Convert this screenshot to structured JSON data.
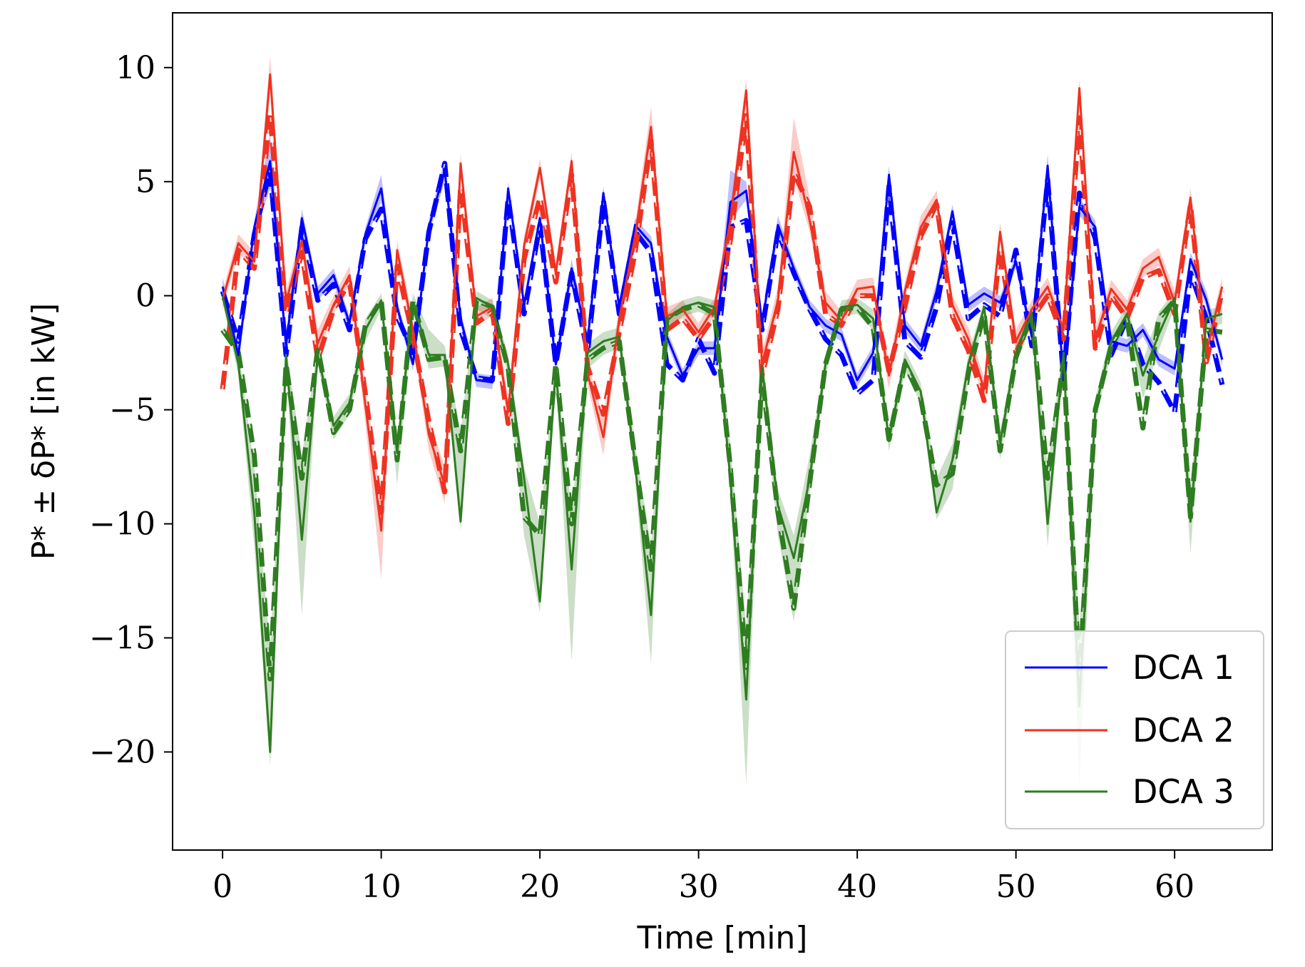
{
  "chart_data": {
    "type": "line",
    "title": "",
    "xlabel": "Time [min]",
    "ylabel": "P* ± δP* [in kW]",
    "xlim": [
      -3.15,
      66.15
    ],
    "ylim": [
      -24.3,
      12.4
    ],
    "xticks": [
      0,
      10,
      20,
      30,
      40,
      50,
      60
    ],
    "yticks": [
      10,
      5,
      0,
      -5,
      -10,
      -15,
      -20
    ],
    "xtick_labels": [
      "0",
      "10",
      "20",
      "30",
      "40",
      "50",
      "60"
    ],
    "ytick_labels": [
      "10",
      "5",
      "0",
      "−5",
      "−10",
      "−15",
      "−20"
    ],
    "legend_position": "lower-right",
    "grid": false,
    "x": [
      0,
      1,
      2,
      3,
      4,
      5,
      6,
      7,
      8,
      9,
      10,
      11,
      12,
      13,
      14,
      15,
      16,
      17,
      18,
      19,
      20,
      21,
      22,
      23,
      24,
      25,
      26,
      27,
      28,
      29,
      30,
      31,
      32,
      33,
      34,
      35,
      36,
      37,
      38,
      39,
      40,
      41,
      42,
      43,
      44,
      45,
      46,
      47,
      48,
      49,
      50,
      51,
      52,
      53,
      54,
      55,
      56,
      57,
      58,
      59,
      60,
      61,
      62,
      63
    ],
    "series": [
      {
        "name": "DCA 1",
        "color": "#0000ff",
        "actual": [
          0.4,
          -2.6,
          3.0,
          5.9,
          -2.2,
          3.4,
          0.1,
          0.9,
          -1.2,
          2.7,
          4.7,
          -0.5,
          -3.0,
          3.0,
          5.5,
          -1.0,
          -3.7,
          -3.8,
          4.7,
          -0.4,
          3.4,
          -3.0,
          1.2,
          -2.0,
          4.5,
          -0.5,
          3.1,
          2.3,
          -1.8,
          -3.5,
          -2.3,
          -2.3,
          4.1,
          4.6,
          -1.2,
          3.1,
          1.2,
          -0.5,
          -1.3,
          -1.7,
          -3.7,
          -2.5,
          5.3,
          -1.3,
          -2.2,
          0.2,
          3.7,
          -0.4,
          0.1,
          -0.3,
          1.5,
          -1.8,
          5.7,
          -3.7,
          3.9,
          3.0,
          -2.0,
          -2.2,
          -1.5,
          -2.8,
          -3.2,
          1.6,
          -0.2,
          -2.8
        ],
        "forecast": [
          0.2,
          -2.0,
          2.7,
          5.5,
          -2.6,
          3.0,
          -0.2,
          0.5,
          -1.5,
          2.5,
          3.8,
          -0.9,
          -2.5,
          2.8,
          5.8,
          -1.5,
          -3.6,
          -3.7,
          4.3,
          -0.8,
          3.1,
          -3.0,
          1.0,
          -2.5,
          4.2,
          -0.8,
          2.8,
          1.9,
          -3.0,
          -3.7,
          -1.9,
          -3.4,
          3.0,
          3.3,
          -1.5,
          2.8,
          1.0,
          -0.6,
          -1.9,
          -2.6,
          -4.3,
          -3.7,
          4.8,
          -2.0,
          -2.7,
          -0.5,
          3.2,
          -1.0,
          -0.4,
          -0.9,
          2.0,
          -2.2,
          5.1,
          -3.6,
          4.5,
          2.5,
          -2.6,
          -1.0,
          -3.0,
          -3.8,
          -5.1,
          1.0,
          -1.0,
          -3.9
        ],
        "upper": [
          0.8,
          -2.2,
          3.3,
          7.1,
          -1.6,
          3.8,
          0.4,
          1.2,
          -0.9,
          3.0,
          5.3,
          -0.2,
          -2.7,
          3.3,
          6.0,
          -0.7,
          -3.4,
          -3.5,
          5.0,
          -0.1,
          3.7,
          -2.6,
          1.6,
          -1.7,
          4.8,
          -0.2,
          3.4,
          2.6,
          -1.5,
          -3.2,
          -2.0,
          -2.0,
          5.5,
          5.0,
          -0.9,
          3.5,
          1.5,
          -0.2,
          -1.0,
          -1.4,
          -3.4,
          -2.2,
          5.7,
          -1.0,
          -1.9,
          0.6,
          4.0,
          -0.1,
          0.4,
          0.0,
          1.8,
          -1.5,
          6.2,
          -3.4,
          4.3,
          3.3,
          -1.7,
          -1.9,
          -1.2,
          -2.5,
          -2.9,
          1.9,
          0.2,
          -2.5
        ],
        "lower": [
          0.0,
          -3.0,
          2.6,
          4.7,
          -2.6,
          3.0,
          -0.2,
          0.6,
          -1.5,
          2.4,
          4.1,
          -0.8,
          -3.3,
          2.7,
          5.0,
          -1.3,
          -4.0,
          -4.1,
          4.4,
          -0.7,
          3.1,
          -3.4,
          0.8,
          -2.3,
          4.2,
          -0.8,
          2.8,
          2.0,
          -2.1,
          -3.8,
          -2.6,
          -2.6,
          3.3,
          4.2,
          -1.5,
          2.7,
          0.9,
          -0.8,
          -1.6,
          -2.0,
          -4.0,
          -2.8,
          4.9,
          -1.6,
          -2.5,
          -0.2,
          3.4,
          -0.7,
          -0.2,
          -0.6,
          1.2,
          -2.1,
          5.2,
          -4.0,
          3.5,
          2.7,
          -2.3,
          -2.5,
          -1.8,
          -3.1,
          -3.5,
          1.3,
          -0.5,
          -3.1
        ]
      },
      {
        "name": "DCA 2",
        "color": "#ee3322",
        "actual": [
          -0.2,
          2.3,
          1.5,
          9.7,
          -0.3,
          2.4,
          -2.1,
          -0.4,
          0.9,
          -4.8,
          -10.3,
          2.0,
          -1.5,
          -6.1,
          -8.3,
          5.8,
          -0.9,
          -0.5,
          -5.1,
          2.2,
          5.6,
          1.0,
          5.9,
          -3.4,
          -6.2,
          -1.0,
          2.6,
          7.4,
          -0.9,
          -0.6,
          -1.6,
          -0.5,
          3.3,
          9.0,
          -3.0,
          -0.2,
          6.3,
          3.3,
          -0.3,
          -1.1,
          0.3,
          0.4,
          -3.5,
          0.2,
          3.0,
          4.2,
          -0.4,
          -1.9,
          -4.1,
          2.8,
          -2.0,
          -0.6,
          0.4,
          -1.5,
          9.1,
          -1.9,
          0.3,
          -0.6,
          1.2,
          1.7,
          -0.3,
          4.3,
          -2.5,
          0.4
        ],
        "forecast": [
          -4.1,
          2.0,
          1.2,
          8.0,
          -0.8,
          1.9,
          -2.8,
          -0.6,
          0.6,
          -4.3,
          -9.5,
          1.3,
          -1.8,
          -5.5,
          -8.6,
          4.8,
          -1.2,
          -0.7,
          -5.6,
          1.6,
          4.3,
          0.6,
          5.3,
          -3.1,
          -5.2,
          -1.6,
          1.9,
          6.8,
          -1.5,
          -1.0,
          -1.9,
          -0.9,
          2.4,
          7.9,
          -3.5,
          -0.6,
          5.4,
          3.9,
          -0.8,
          -1.3,
          0.0,
          0.0,
          -3.3,
          -0.5,
          2.6,
          4.0,
          -0.9,
          -2.4,
          -4.6,
          2.1,
          -2.5,
          -1.0,
          0.0,
          -1.9,
          7.8,
          -2.3,
          0.0,
          -1.0,
          0.8,
          1.1,
          -0.8,
          4.0,
          -2.9,
          0.2
        ],
        "upper": [
          0.2,
          2.7,
          1.9,
          10.5,
          0.2,
          2.9,
          -1.5,
          0.0,
          1.3,
          -4.0,
          -9.0,
          2.4,
          -1.0,
          -5.4,
          -7.5,
          6.2,
          -0.5,
          -0.1,
          -4.5,
          2.6,
          6.0,
          1.4,
          6.3,
          -2.9,
          -5.4,
          -0.4,
          3.1,
          8.3,
          -0.5,
          -0.2,
          -1.2,
          -0.1,
          3.9,
          9.5,
          -2.5,
          0.4,
          7.8,
          4.3,
          0.2,
          -0.7,
          0.7,
          0.8,
          -2.9,
          0.6,
          3.5,
          4.6,
          0.0,
          -1.4,
          -3.6,
          3.2,
          -1.5,
          -0.2,
          0.8,
          -1.1,
          9.5,
          -1.4,
          0.7,
          -0.2,
          1.6,
          2.1,
          0.2,
          4.7,
          -2.0,
          0.8
        ],
        "lower": [
          -0.6,
          1.9,
          1.1,
          8.9,
          -0.8,
          1.9,
          -2.7,
          -0.8,
          0.5,
          -5.6,
          -12.4,
          1.6,
          -2.0,
          -6.8,
          -9.1,
          5.3,
          -1.3,
          -0.9,
          -5.7,
          1.8,
          5.1,
          0.6,
          5.4,
          -3.9,
          -7.0,
          -1.6,
          2.1,
          6.6,
          -1.3,
          -1.0,
          -2.0,
          -0.9,
          2.7,
          8.4,
          -3.5,
          -0.7,
          5.2,
          2.8,
          -0.7,
          -1.5,
          -0.1,
          0.0,
          -4.1,
          -0.2,
          2.5,
          3.8,
          -0.8,
          -2.4,
          -4.6,
          2.4,
          -2.5,
          -1.0,
          0.0,
          -1.9,
          8.6,
          -2.4,
          -0.1,
          -1.0,
          0.8,
          1.3,
          -0.7,
          3.9,
          -3.0,
          0.0
        ],
        "forecast_breaks": [
          63
        ]
      },
      {
        "name": "DCA 3",
        "color": "#2e7d21",
        "actual": [
          0.0,
          -3.0,
          -9.5,
          -20.0,
          -2.6,
          -10.7,
          -2.6,
          -5.7,
          -4.7,
          -1.5,
          -0.2,
          -6.9,
          -0.3,
          -2.6,
          -2.6,
          -9.9,
          -0.1,
          -0.5,
          -3.0,
          -8.0,
          -13.4,
          -3.2,
          -12.0,
          -2.5,
          -2.0,
          -1.8,
          -7.4,
          -14.0,
          -1.1,
          -0.5,
          -0.3,
          -0.5,
          -8.0,
          -17.7,
          -3.1,
          -9.2,
          -11.5,
          -8.0,
          -3.0,
          -0.5,
          -0.4,
          -1.0,
          -6.3,
          -2.8,
          -4.2,
          -9.5,
          -7.2,
          -3.0,
          -0.5,
          -6.5,
          -2.5,
          -0.8,
          -10.0,
          -2.5,
          -18.0,
          -5.0,
          -2.0,
          -0.8,
          -3.5,
          -1.7,
          -0.1,
          -9.9,
          -1.0,
          -0.8
        ],
        "forecast": [
          -1.5,
          -2.5,
          -7.0,
          -16.8,
          -3.0,
          -8.0,
          -2.3,
          -6.0,
          -5.0,
          -1.3,
          -0.2,
          -7.2,
          -0.2,
          -2.8,
          -2.7,
          -6.8,
          -0.2,
          -0.5,
          -3.2,
          -9.7,
          -10.5,
          -3.0,
          -10.0,
          -2.8,
          -2.3,
          -2.0,
          -7.2,
          -12.0,
          -1.0,
          -0.6,
          -0.4,
          -0.8,
          -7.5,
          -16.3,
          -3.5,
          -9.5,
          -13.7,
          -8.2,
          -3.0,
          -0.6,
          -0.5,
          -1.4,
          -6.3,
          -3.0,
          -4.5,
          -8.3,
          -7.8,
          -3.4,
          -0.8,
          -6.8,
          -2.7,
          -0.8,
          -8.0,
          -2.8,
          -16.8,
          -5.0,
          -2.2,
          -1.0,
          -5.8,
          -1.0,
          -0.2,
          -9.7,
          -1.5,
          -1.6
        ],
        "upper": [
          0.3,
          -2.4,
          -7.5,
          -15.5,
          -2.2,
          -7.0,
          -2.2,
          -5.3,
          -4.3,
          -1.0,
          0.1,
          -6.2,
          0.1,
          -1.5,
          -2.2,
          -6.0,
          0.2,
          -0.2,
          -2.6,
          -7.5,
          -10.0,
          -2.8,
          -9.5,
          -2.1,
          -1.6,
          -1.4,
          -6.5,
          -11.0,
          -0.8,
          -0.2,
          0.0,
          -0.2,
          -6.5,
          -14.5,
          -2.7,
          -8.5,
          -10.5,
          -7.0,
          -2.6,
          -0.2,
          -0.1,
          -0.6,
          -5.9,
          -2.4,
          -3.8,
          -8.0,
          -6.5,
          -2.6,
          -0.2,
          -6.0,
          -2.1,
          -0.4,
          -7.5,
          -2.1,
          -14.5,
          -4.5,
          -1.6,
          -0.4,
          -2.9,
          -0.7,
          0.2,
          -8.5,
          -0.6,
          -0.5
        ],
        "lower": [
          -0.3,
          -3.5,
          -11.0,
          -20.6,
          -3.1,
          -14.0,
          -3.0,
          -6.3,
          -5.2,
          -2.0,
          -0.6,
          -8.3,
          -0.7,
          -3.2,
          -3.1,
          -10.3,
          -0.6,
          -1.0,
          -3.5,
          -10.5,
          -13.9,
          -3.6,
          -16.0,
          -3.2,
          -2.6,
          -2.3,
          -8.0,
          -16.1,
          -1.5,
          -0.9,
          -0.7,
          -1.0,
          -8.6,
          -21.4,
          -3.6,
          -10.5,
          -14.3,
          -8.6,
          -3.5,
          -0.9,
          -0.8,
          -1.5,
          -6.8,
          -3.3,
          -4.7,
          -9.8,
          -8.5,
          -3.7,
          -1.0,
          -7.2,
          -3.0,
          -1.2,
          -11.0,
          -3.0,
          -21.5,
          -5.6,
          -2.5,
          -1.2,
          -4.5,
          -2.4,
          -0.5,
          -11.3,
          -1.6,
          -1.2
        ]
      }
    ]
  }
}
